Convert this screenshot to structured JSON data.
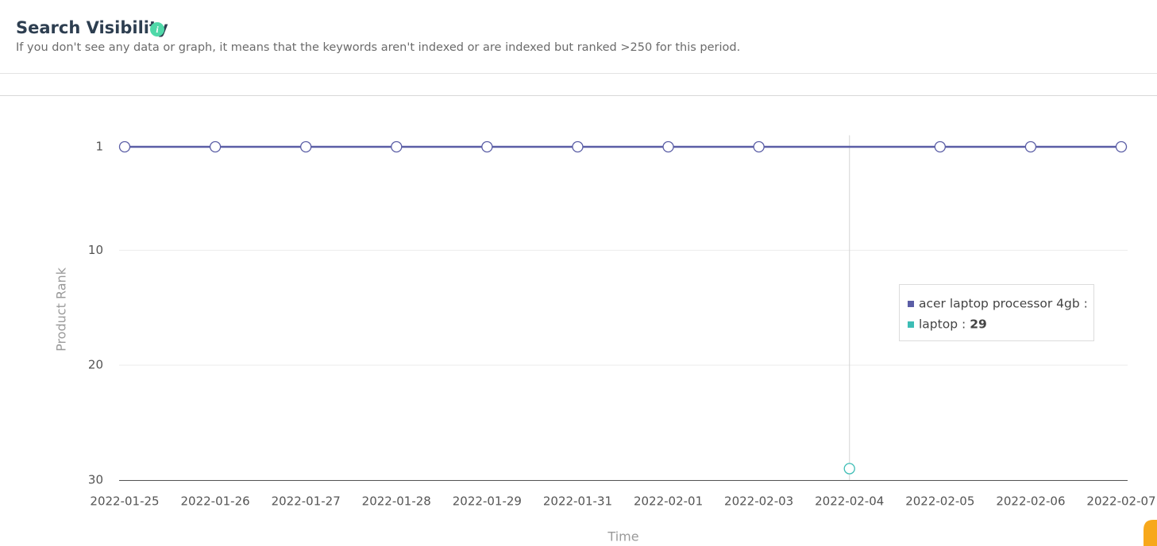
{
  "header": {
    "title": "Search Visibility",
    "subtitle": "If you don't see any data or graph, it means that the keywords aren't indexed or are indexed but ranked >250 for this period."
  },
  "chart_data": {
    "type": "line",
    "categories": [
      "2022-01-25",
      "2022-01-26",
      "2022-01-27",
      "2022-01-28",
      "2022-01-29",
      "2022-01-31",
      "2022-02-01",
      "2022-02-03",
      "2022-02-04",
      "2022-02-05",
      "2022-02-06",
      "2022-02-07"
    ],
    "series": [
      {
        "name": "acer laptop processor 4gb",
        "color": "#5b5ea6",
        "values": [
          1,
          1,
          1,
          1,
          1,
          1,
          1,
          1,
          null,
          1,
          1,
          1
        ]
      },
      {
        "name": "laptop",
        "color": "#3dbdb5",
        "values": [
          null,
          null,
          null,
          null,
          null,
          null,
          null,
          null,
          29,
          null,
          null,
          null
        ]
      }
    ],
    "connect_nulls": true,
    "ylim": [
      30,
      0
    ],
    "yticks": [
      1,
      10,
      20,
      30
    ],
    "grid": true,
    "ylabel": "Product Rank",
    "xlabel": "Time",
    "tooltip": {
      "rows": [
        {
          "text": "acer laptop processor 4gb :"
        },
        {
          "text": "laptop :",
          "value": "29"
        }
      ]
    }
  }
}
